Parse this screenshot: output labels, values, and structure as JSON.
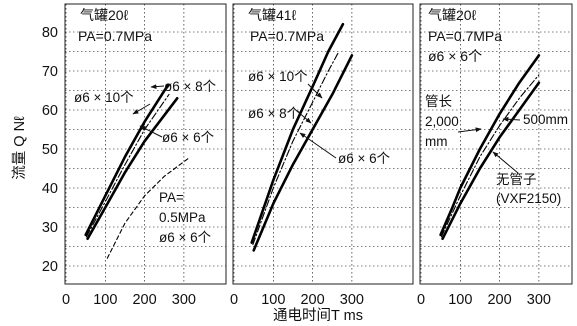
{
  "chart_data": {
    "type": "line",
    "shared_axes": {
      "xlabel": "通电时间T ms",
      "ylabel": "流量 Q Nℓ",
      "xlim": [
        0,
        350
      ],
      "ylim": [
        15,
        85
      ],
      "xticks": [
        0,
        100,
        200,
        300
      ],
      "xtick_labels": [
        "0",
        "100",
        "200",
        "300"
      ],
      "yticks": [
        20,
        25,
        30,
        35,
        40,
        45,
        50,
        55,
        60,
        65,
        70,
        75,
        80
      ],
      "ytick_labels": [
        "20",
        "",
        "30",
        "",
        "40",
        "",
        "50",
        "",
        "60",
        "",
        "70",
        "",
        "80"
      ],
      "grid": true
    },
    "panels": [
      {
        "title_lines": [
          "气罐20ℓ",
          "PA=0.7MPa"
        ],
        "series": [
          {
            "name": "ø6 × 8个",
            "style": "solid",
            "weight": "bold",
            "x": [
              50,
              100,
              150,
              200,
              260
            ],
            "y": [
              28,
              38,
              48,
              57,
              66.5
            ]
          },
          {
            "name": "ø6 × 10个",
            "style": "dashdot",
            "weight": "thin",
            "x": [
              52,
              100,
              150,
              200,
              262
            ],
            "y": [
              27.5,
              36.5,
              46,
              55,
              64
            ]
          },
          {
            "name": "ø6 × 6个",
            "style": "solid",
            "weight": "bold",
            "x": [
              55,
              100,
              150,
              200,
              283
            ],
            "y": [
              27,
              35,
              44,
              52,
              63
            ]
          },
          {
            "name": "PA=0.5MPa ø6 × 6个",
            "style": "dashed",
            "weight": "thin",
            "x": [
              105,
              150,
              200,
              250,
              310
            ],
            "y": [
              22,
              31,
              38,
              43,
              47.5
            ]
          }
        ],
        "annotations": [
          {
            "text": "ø6 × 8个",
            "target_series": 0
          },
          {
            "text": "ø6 × 10个",
            "target_series": 1
          },
          {
            "text": "ø6 × 6个",
            "target_series": 2
          },
          {
            "text_lines": [
              "PA=",
              "0.5MPa",
              "ø6 × 6个"
            ],
            "target_series": 3
          }
        ]
      },
      {
        "title_lines": [
          "气罐41ℓ",
          "PA=0.7MPa"
        ],
        "series": [
          {
            "name": "ø6 × 10个",
            "style": "solid",
            "weight": "bold",
            "x": [
              45,
              100,
              150,
              200,
              240,
              277
            ],
            "y": [
              26,
              42,
              55,
              66,
              75,
              82
            ]
          },
          {
            "name": "ø6 × 8个",
            "style": "dashdot",
            "weight": "thin",
            "x": [
              48,
              100,
              150,
              200,
              240,
              267
            ],
            "y": [
              25.5,
              40,
              52,
              62,
              70,
              75
            ]
          },
          {
            "name": "ø6 × 6个",
            "style": "solid",
            "weight": "bold",
            "x": [
              50,
              100,
              150,
              200,
              250,
              300
            ],
            "y": [
              24,
              36,
              46,
              55,
              64,
              74
            ]
          }
        ],
        "annotations": [
          {
            "text": "ø6 × 10个",
            "target_series": 0
          },
          {
            "text": "ø6 × 8个",
            "target_series": 1
          },
          {
            "text": "ø6 × 6个",
            "target_series": 2
          }
        ]
      },
      {
        "title_lines": [
          "气罐20ℓ",
          "PA=0.7MPa",
          "ø6 × 6个"
        ],
        "series": [
          {
            "name": "管长 2,000 mm",
            "style": "solid",
            "weight": "bold",
            "x": [
              50,
              80,
              100,
              150,
              200,
              250,
              300
            ],
            "y": [
              28,
              35,
              40,
              50,
              59,
              67,
              74
            ]
          },
          {
            "name": "500mm",
            "style": "dashdot",
            "weight": "thin",
            "x": [
              52,
              100,
              150,
              200,
              250,
              300
            ],
            "y": [
              27.5,
              38,
              48,
              56,
              63,
              69
            ]
          },
          {
            "name": "无管子 (VXF2150)",
            "style": "solid",
            "weight": "bold",
            "x": [
              55,
              100,
              150,
              200,
              250,
              300
            ],
            "y": [
              27,
              36,
              45,
              53,
              60,
              67
            ]
          }
        ],
        "annotations": [
          {
            "text_lines": [
              "管长",
              "2,000",
              "mm"
            ],
            "target_series": 0
          },
          {
            "text": "500mm",
            "target_series": 1
          },
          {
            "text_lines": [
              "无管子",
              "(VXF2150)"
            ],
            "target_series": 2
          }
        ]
      }
    ]
  }
}
